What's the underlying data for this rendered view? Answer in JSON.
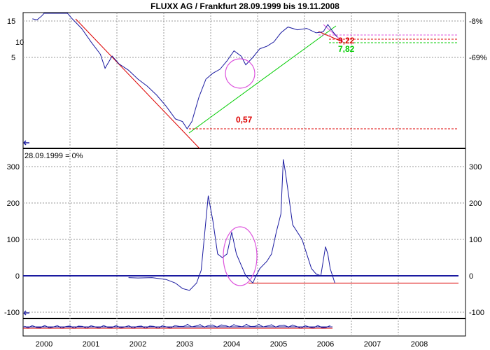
{
  "title": "FLUXX AG / Frankfurt 28.09.1999 bis 19.11.2008",
  "colors": {
    "price": "#1a1aa0",
    "resistance": "#dd0000",
    "support": "#00cc00",
    "highlight": "#dd55dd",
    "zero": "#1a1aa0",
    "axis": "#000000",
    "grid": "#999999"
  },
  "chart_data": [
    {
      "type": "line",
      "name": "price-panel",
      "title": "FLUXX AG / Frankfurt 28.09.1999 bis 19.11.2008",
      "y_scale": "log",
      "yticks_left": [
        "15",
        "10",
        "5"
      ],
      "yticks_right": [
        "-8%",
        "-69%"
      ],
      "annotations": [
        {
          "label": "0,57",
          "value": 0.57,
          "color": "#dd0000"
        },
        {
          "label": "9,22",
          "value": 9.22,
          "color": "#dd0000"
        },
        {
          "label": "7,82",
          "value": 7.82,
          "color": "#00cc00"
        }
      ],
      "series": [
        {
          "x": [
            1999.75,
            1999.85,
            1999.95,
            2000.0,
            2000.1,
            2000.3,
            2000.5,
            2000.6,
            2000.8,
            2001.0,
            2001.2,
            2001.3,
            2001.45,
            2001.6,
            2001.8,
            2002.0,
            2002.2,
            2002.4,
            2002.6,
            2002.8,
            2002.95,
            2003.05,
            2003.15,
            2003.3,
            2003.45,
            2003.6,
            2003.75,
            2003.9,
            2004.05,
            2004.2,
            2004.3,
            2004.45,
            2004.6,
            2004.75,
            2004.9,
            2005.05,
            2005.2,
            2005.4,
            2005.6,
            2005.8,
            2005.95,
            2006.05,
            2006.15,
            2006.25
          ],
          "values": [
            16,
            15.5,
            17.5,
            30,
            60,
            40,
            22,
            16,
            12,
            8,
            5.5,
            3.6,
            5.2,
            4.1,
            3.4,
            2.6,
            2.1,
            1.6,
            1.15,
            0.78,
            0.72,
            0.58,
            0.72,
            1.5,
            2.6,
            3.1,
            3.5,
            4.5,
            6.1,
            5.2,
            4.0,
            5.0,
            6.5,
            7.0,
            8.0,
            10.5,
            12.5,
            11.5,
            12.0,
            10.5,
            10.8,
            13.5,
            11.0,
            9.2
          ]
        }
      ]
    },
    {
      "type": "line",
      "name": "performance-panel",
      "label": "28.09.1999 = 0%",
      "yticks": [
        300,
        200,
        100,
        0,
        -100
      ],
      "ylim": [
        -100,
        340
      ],
      "series": [
        {
          "x": [
            2001.8,
            2002.0,
            2002.3,
            2002.6,
            2002.8,
            2002.95,
            2003.1,
            2003.25,
            2003.35,
            2003.5,
            2003.6,
            2003.7,
            2003.8,
            2003.9,
            2004.0,
            2004.1,
            2004.2,
            2004.3,
            2004.45,
            2004.5,
            2004.6,
            2004.75,
            2004.85,
            2004.95,
            2005.05,
            2005.1,
            2005.15,
            2005.3,
            2005.5,
            2005.7,
            2005.8,
            2005.9,
            2006.0,
            2006.05,
            2006.1,
            2006.2
          ],
          "values": [
            -5,
            -6,
            -5,
            -10,
            -20,
            -35,
            -40,
            -20,
            15,
            220,
            150,
            60,
            50,
            60,
            120,
            60,
            30,
            0,
            -20,
            -5,
            20,
            40,
            60,
            120,
            170,
            320,
            280,
            140,
            100,
            20,
            5,
            0,
            80,
            60,
            20,
            -20
          ]
        }
      ],
      "reference_lines": [
        {
          "label": "",
          "value": 0
        },
        {
          "label": "",
          "value": -20
        }
      ]
    }
  ],
  "x_axis": {
    "ticks": [
      "2000",
      "2001",
      "2002",
      "2003",
      "2004",
      "2005",
      "2006",
      "2007",
      "2008"
    ]
  }
}
